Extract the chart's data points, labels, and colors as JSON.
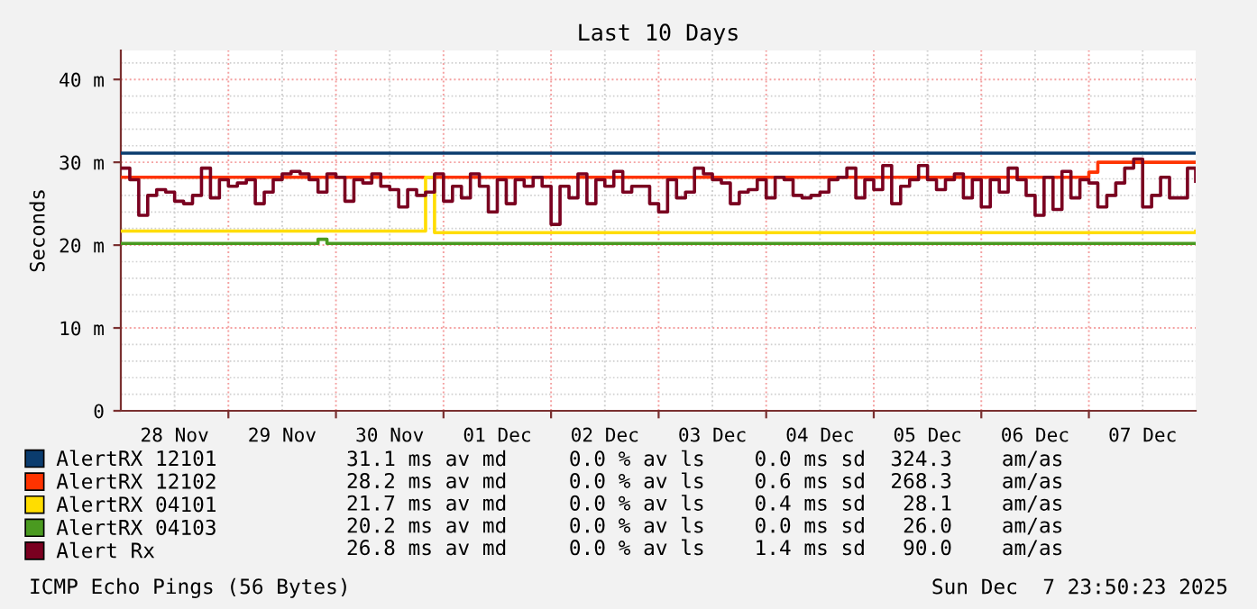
{
  "chart_data": {
    "type": "step",
    "title": "Last 10 Days",
    "ylabel": "Seconds",
    "xlim": [
      "2025-11-28T00:00",
      "2025-12-07T23:50"
    ],
    "xticks": [
      {
        "value": "2025-11-28T12:00",
        "label": "28 Nov"
      },
      {
        "value": "2025-11-29T00:00",
        "label": null
      },
      {
        "value": "2025-11-29T12:00",
        "label": "29 Nov"
      },
      {
        "value": "2025-11-30T00:00",
        "label": null
      },
      {
        "value": "2025-11-30T12:00",
        "label": "30 Nov"
      },
      {
        "value": "2025-12-01T00:00",
        "label": null
      },
      {
        "value": "2025-12-01T12:00",
        "label": "01 Dec"
      },
      {
        "value": "2025-12-02T00:00",
        "label": null
      },
      {
        "value": "2025-12-02T12:00",
        "label": "02 Dec"
      },
      {
        "value": "2025-12-03T00:00",
        "label": null
      },
      {
        "value": "2025-12-03T12:00",
        "label": "03 Dec"
      },
      {
        "value": "2025-12-04T00:00",
        "label": null
      },
      {
        "value": "2025-12-04T12:00",
        "label": "04 Dec"
      },
      {
        "value": "2025-12-05T00:00",
        "label": null
      },
      {
        "value": "2025-12-05T12:00",
        "label": "05 Dec"
      },
      {
        "value": "2025-12-06T00:00",
        "label": null
      },
      {
        "value": "2025-12-06T12:00",
        "label": "06 Dec"
      },
      {
        "value": "2025-12-07T00:00",
        "label": null
      },
      {
        "value": "2025-12-07T12:00",
        "label": "07 Dec"
      }
    ],
    "ylim": [
      0,
      43.5
    ],
    "yticks": [
      0,
      {
        "value": 10,
        "label": "10 m"
      },
      {
        "value": 20,
        "label": "20 m"
      },
      {
        "value": 30,
        "label": "30 m"
      },
      {
        "value": 40,
        "label": "40 m"
      }
    ],
    "grid": true,
    "legend": "bottom",
    "series": [
      {
        "name": "AlertRX 12101",
        "color": "#0b3c6e",
        "x": [
          "2025-11-28T00:00",
          "2025-12-07T23:50"
        ],
        "values": [
          31.1,
          31.1
        ]
      },
      {
        "name": "AlertRX 12102",
        "color": "#ff3300",
        "x": [
          "2025-11-28T00:00",
          "2025-12-07T00:00",
          "2025-12-07T02:00",
          "2025-12-07T23:50"
        ],
        "values": [
          28.2,
          28.8,
          30.0,
          30.0
        ]
      },
      {
        "name": "AlertRX 04101",
        "color": "#ffdd00",
        "x": [
          "2025-11-28T00:00",
          "2025-11-30T20:00",
          "2025-11-30T22:00",
          "2025-12-07T23:50"
        ],
        "values": [
          21.7,
          28.2,
          21.5,
          21.7
        ]
      },
      {
        "name": "AlertRX 04103",
        "color": "#4a9a20",
        "x": [
          "2025-11-28T00:00",
          "2025-11-29T20:00",
          "2025-11-29T22:00",
          "2025-12-07T23:50"
        ],
        "values": [
          20.2,
          20.7,
          20.2,
          20.2
        ]
      },
      {
        "name": "Alert Rx",
        "color": "#7a0020",
        "x": [
          "2025-11-28T00:00",
          "2025-11-28T02:00",
          "2025-11-28T04:00",
          "2025-11-28T06:00",
          "2025-11-28T08:00",
          "2025-11-28T10:00",
          "2025-11-28T12:00",
          "2025-11-28T14:00",
          "2025-11-28T16:00",
          "2025-11-28T18:00",
          "2025-11-28T20:00",
          "2025-11-28T22:00",
          "2025-11-29T00:00",
          "2025-11-29T02:00",
          "2025-11-29T04:00",
          "2025-11-29T06:00",
          "2025-11-29T08:00",
          "2025-11-29T10:00",
          "2025-11-29T12:00",
          "2025-11-29T14:00",
          "2025-11-29T16:00",
          "2025-11-29T18:00",
          "2025-11-29T20:00",
          "2025-11-29T22:00",
          "2025-11-30T00:00",
          "2025-11-30T02:00",
          "2025-11-30T04:00",
          "2025-11-30T06:00",
          "2025-11-30T08:00",
          "2025-11-30T10:00",
          "2025-11-30T12:00",
          "2025-11-30T14:00",
          "2025-11-30T16:00",
          "2025-11-30T18:00",
          "2025-11-30T20:00",
          "2025-11-30T22:00",
          "2025-12-01T00:00",
          "2025-12-01T02:00",
          "2025-12-01T04:00",
          "2025-12-01T06:00",
          "2025-12-01T08:00",
          "2025-12-01T10:00",
          "2025-12-01T12:00",
          "2025-12-01T14:00",
          "2025-12-01T16:00",
          "2025-12-01T18:00",
          "2025-12-01T20:00",
          "2025-12-01T22:00",
          "2025-12-02T00:00",
          "2025-12-02T02:00",
          "2025-12-02T04:00",
          "2025-12-02T06:00",
          "2025-12-02T08:00",
          "2025-12-02T10:00",
          "2025-12-02T12:00",
          "2025-12-02T14:00",
          "2025-12-02T16:00",
          "2025-12-02T18:00",
          "2025-12-02T20:00",
          "2025-12-02T22:00",
          "2025-12-03T00:00",
          "2025-12-03T02:00",
          "2025-12-03T04:00",
          "2025-12-03T06:00",
          "2025-12-03T08:00",
          "2025-12-03T10:00",
          "2025-12-03T12:00",
          "2025-12-03T14:00",
          "2025-12-03T16:00",
          "2025-12-03T18:00",
          "2025-12-03T20:00",
          "2025-12-03T22:00",
          "2025-12-04T00:00",
          "2025-12-04T02:00",
          "2025-12-04T04:00",
          "2025-12-04T06:00",
          "2025-12-04T08:00",
          "2025-12-04T10:00",
          "2025-12-04T12:00",
          "2025-12-04T14:00",
          "2025-12-04T16:00",
          "2025-12-04T18:00",
          "2025-12-04T20:00",
          "2025-12-04T22:00",
          "2025-12-05T00:00",
          "2025-12-05T02:00",
          "2025-12-05T04:00",
          "2025-12-05T06:00",
          "2025-12-05T08:00",
          "2025-12-05T10:00",
          "2025-12-05T12:00",
          "2025-12-05T14:00",
          "2025-12-05T16:00",
          "2025-12-05T18:00",
          "2025-12-05T20:00",
          "2025-12-05T22:00",
          "2025-12-06T00:00",
          "2025-12-06T02:00",
          "2025-12-06T04:00",
          "2025-12-06T06:00",
          "2025-12-06T08:00",
          "2025-12-06T10:00",
          "2025-12-06T12:00",
          "2025-12-06T14:00",
          "2025-12-06T16:00",
          "2025-12-06T18:00",
          "2025-12-06T20:00",
          "2025-12-06T22:00",
          "2025-12-07T00:00",
          "2025-12-07T02:00",
          "2025-12-07T04:00",
          "2025-12-07T06:00",
          "2025-12-07T08:00",
          "2025-12-07T10:00",
          "2025-12-07T12:00",
          "2025-12-07T14:00",
          "2025-12-07T16:00",
          "2025-12-07T18:00",
          "2025-12-07T20:00",
          "2025-12-07T22:00",
          "2025-12-07T23:50"
        ],
        "values": [
          29.3,
          27.9,
          23.6,
          26.0,
          26.7,
          26.4,
          25.3,
          25.0,
          26.0,
          29.3,
          25.7,
          27.9,
          27.1,
          27.5,
          27.9,
          25.0,
          26.4,
          27.9,
          28.6,
          28.9,
          28.6,
          27.9,
          26.4,
          28.6,
          28.2,
          25.3,
          27.9,
          27.5,
          28.6,
          27.1,
          26.7,
          24.6,
          26.7,
          26.0,
          26.4,
          28.6,
          25.3,
          27.1,
          25.7,
          28.6,
          27.1,
          24.0,
          27.9,
          25.0,
          27.9,
          27.1,
          28.2,
          27.1,
          22.5,
          27.1,
          25.7,
          28.6,
          25.0,
          27.9,
          27.1,
          28.9,
          26.4,
          27.1,
          27.1,
          25.0,
          24.0,
          27.9,
          25.7,
          26.4,
          29.3,
          28.6,
          27.9,
          27.5,
          25.0,
          26.4,
          26.7,
          27.9,
          25.7,
          28.2,
          27.9,
          26.0,
          25.7,
          26.0,
          26.4,
          27.9,
          28.2,
          29.3,
          25.7,
          27.9,
          26.7,
          29.6,
          25.0,
          27.1,
          27.9,
          29.6,
          27.9,
          26.7,
          27.9,
          28.6,
          25.7,
          27.9,
          24.6,
          27.9,
          26.4,
          29.3,
          27.9,
          26.0,
          23.6,
          28.2,
          24.3,
          28.9,
          25.7,
          27.9,
          27.5,
          24.6,
          26.0,
          27.5,
          29.3,
          30.4,
          24.6,
          26.0,
          28.2,
          25.7,
          25.7,
          29.3,
          27.7
        ]
      }
    ],
    "annotations": [
      "31.1 ms av md     0.0 % av ls    0.0 ms sd  324.3    am/as",
      "28.2 ms av md     0.0 % av ls    0.6 ms sd  268.3    am/as",
      "21.7 ms av md     0.0 % av ls    0.4 ms sd   28.1    am/as",
      "20.2 ms av md     0.0 % av ls    0.0 ms sd   26.0    am/as",
      "26.8 ms av md     0.0 % av ls    1.4 ms sd   90.0    am/as",
      "ICMP Echo Pings (56 Bytes)",
      "Sun Dec  7 23:50:23 2025"
    ]
  }
}
